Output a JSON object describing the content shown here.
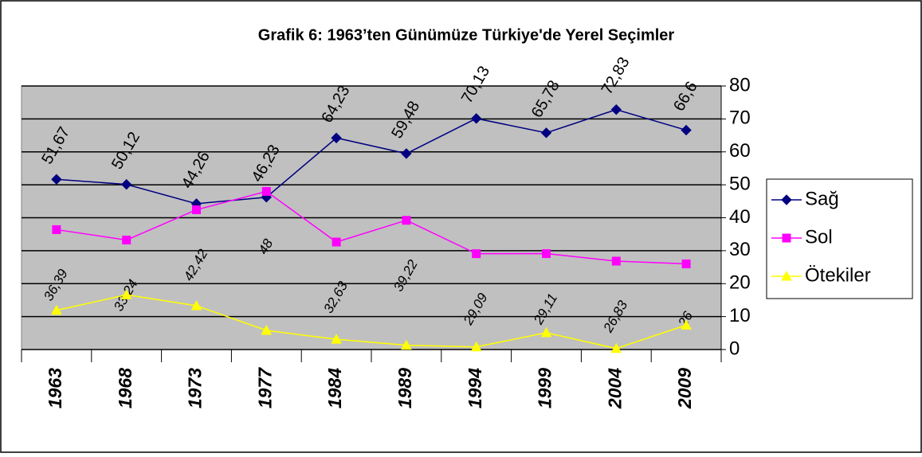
{
  "chart_data": {
    "type": "line",
    "title": "Grafik 6: 1963’ten Günümüze Türkiye'de Yerel Seçimler",
    "categories": [
      "1963",
      "1968",
      "1973",
      "1977",
      "1984",
      "1989",
      "1994",
      "1999",
      "2004",
      "2009"
    ],
    "series": [
      {
        "name": "Sağ",
        "color": "#000080",
        "marker": "diamond",
        "values": [
          51.67,
          50.12,
          44.26,
          46.23,
          64.23,
          59.48,
          70.13,
          65.78,
          72.83,
          66.6
        ],
        "value_labels": [
          "51,67",
          "50,12",
          "44,26",
          "46,23",
          "64,23",
          "59,48",
          "70,13",
          "65,78",
          "72,83",
          "66,6"
        ]
      },
      {
        "name": "Sol",
        "color": "#ff00ff",
        "marker": "square",
        "values": [
          36.39,
          33.24,
          42.42,
          48,
          32.63,
          39.22,
          29.09,
          29.11,
          26.83,
          26
        ],
        "value_labels": [
          "36,39",
          "33,24",
          "42,42",
          "48",
          "32,63",
          "39,22",
          "29,09",
          "29,11",
          "26,83",
          "26"
        ]
      },
      {
        "name": "Ötekiler",
        "color": "#ffff00",
        "marker": "triangle",
        "values": [
          11.9,
          16.6,
          13.3,
          5.8,
          3.1,
          1.3,
          0.8,
          5.1,
          0.3,
          7.4
        ]
      }
    ],
    "ylim": [
      0,
      80
    ],
    "yticks": [
      0,
      10,
      20,
      30,
      40,
      50,
      60,
      70,
      80
    ],
    "grid": true,
    "legend": "right",
    "plot_background": "#c0c0c0"
  }
}
